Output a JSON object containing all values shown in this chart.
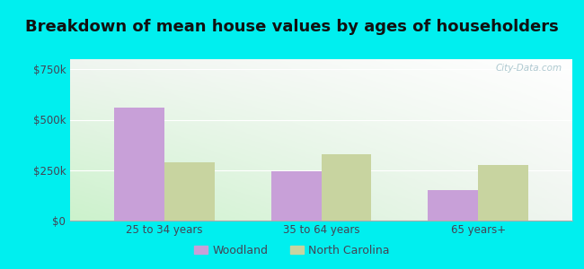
{
  "title": "Breakdown of mean house values by ages of householders",
  "categories": [
    "25 to 34 years",
    "35 to 64 years",
    "65 years+"
  ],
  "woodland_values": [
    560000,
    245000,
    150000
  ],
  "nc_values": [
    290000,
    330000,
    275000
  ],
  "woodland_color": "#c8a0d8",
  "nc_color": "#c8d4a0",
  "yticks": [
    0,
    250000,
    500000,
    750000
  ],
  "ytick_labels": [
    "$0",
    "$250k",
    "$500k",
    "$750k"
  ],
  "ylim": [
    0,
    800000
  ],
  "bar_width": 0.32,
  "outer_background": "#00efef",
  "legend_labels": [
    "Woodland",
    "North Carolina"
  ],
  "title_fontsize": 13,
  "title_color": "#111111",
  "tick_color": "#444455",
  "watermark": "City-Data.com"
}
